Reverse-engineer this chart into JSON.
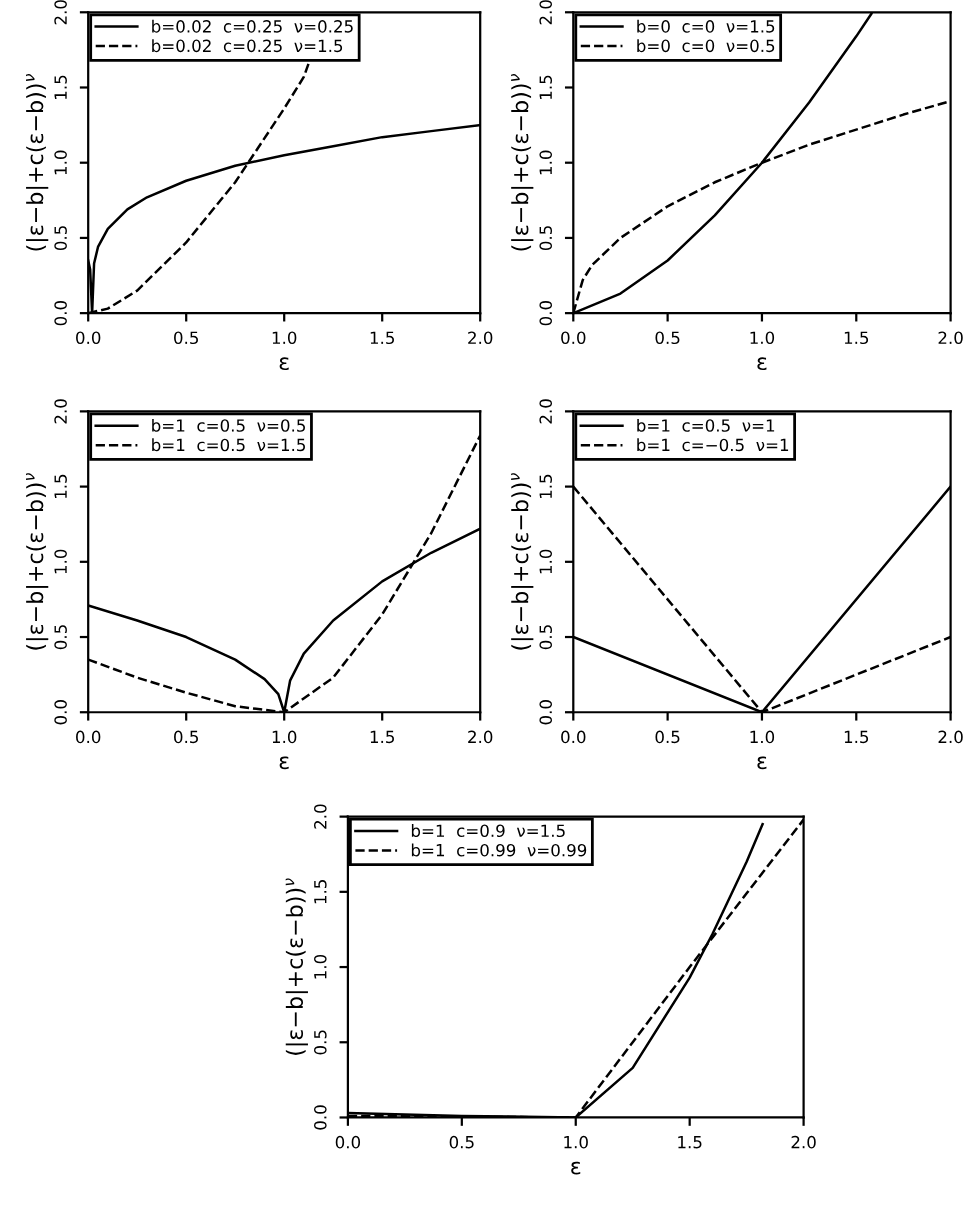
{
  "chart_data": [
    {
      "type": "line",
      "xlabel": "ε",
      "ylabel": "(|ε−b|+c(ε−b))$^{ν}$",
      "xlim": [
        0,
        2
      ],
      "ylim": [
        0,
        2
      ],
      "xticks": [
        {
          "value": 0,
          "label": "0.0"
        },
        {
          "value": 0.5,
          "label": "0.5"
        },
        {
          "value": 1,
          "label": "1.0"
        },
        {
          "value": 1.5,
          "label": "1.5"
        },
        {
          "value": 2,
          "label": "2.0"
        }
      ],
      "yticks": [
        {
          "value": 0,
          "label": "0.0"
        },
        {
          "value": 0.5,
          "label": "0.5"
        },
        {
          "value": 1,
          "label": "1.0"
        },
        {
          "value": 1.5,
          "label": "1.5"
        },
        {
          "value": 2,
          "label": "2.0"
        }
      ],
      "grid": false,
      "legend": "top left",
      "marker": "none",
      "series": [
        {
          "name": "b=0.02  c=0.25  ν=0.25",
          "color": "#000000",
          "line_style": "solid",
          "x": [
            0,
            0.01,
            0.02,
            0.03,
            0.05,
            0.1,
            0.2,
            0.3,
            0.5,
            0.75,
            1.0,
            1.25,
            1.5,
            1.75,
            2.0
          ],
          "values": [
            0.35,
            0.29,
            0,
            0.33,
            0.44,
            0.56,
            0.69,
            0.77,
            0.88,
            0.98,
            1.05,
            1.11,
            1.17,
            1.21,
            1.25
          ]
        },
        {
          "name": "b=0.02  c=0.25  ν=1.5",
          "color": "#000000",
          "line_style": "dashed",
          "x": [
            0,
            0.1,
            0.25,
            0.5,
            0.75,
            1.0,
            1.1,
            1.13
          ],
          "values": [
            0.0,
            0.03,
            0.15,
            0.47,
            0.87,
            1.36,
            1.57,
            1.68
          ]
        }
      ]
    },
    {
      "type": "line",
      "xlabel": "ε",
      "ylabel": "(|ε−b|+c(ε−b))$^{ν}$",
      "xlim": [
        0,
        2
      ],
      "ylim": [
        0,
        2
      ],
      "xticks": [
        {
          "value": 0,
          "label": "0.0"
        },
        {
          "value": 0.5,
          "label": "0.5"
        },
        {
          "value": 1,
          "label": "1.0"
        },
        {
          "value": 1.5,
          "label": "1.5"
        },
        {
          "value": 2,
          "label": "2.0"
        }
      ],
      "yticks": [
        {
          "value": 0,
          "label": "0.0"
        },
        {
          "value": 0.5,
          "label": "0.5"
        },
        {
          "value": 1,
          "label": "1.0"
        },
        {
          "value": 1.5,
          "label": "1.5"
        },
        {
          "value": 2,
          "label": "2.0"
        }
      ],
      "grid": false,
      "legend": "top left",
      "marker": "none",
      "series": [
        {
          "name": "b=0  c=0  ν=1.5",
          "color": "#000000",
          "line_style": "solid",
          "x": [
            0,
            0.25,
            0.5,
            0.75,
            1.0,
            1.25,
            1.5,
            1.58
          ],
          "values": [
            0,
            0.13,
            0.35,
            0.65,
            1.0,
            1.4,
            1.84,
            1.99
          ]
        },
        {
          "name": "b=0  c=0  ν=0.5",
          "color": "#000000",
          "line_style": "dashed",
          "x": [
            0,
            0.05,
            0.1,
            0.25,
            0.5,
            0.75,
            1.0,
            1.25,
            1.5,
            1.75,
            2.0
          ],
          "values": [
            0,
            0.22,
            0.32,
            0.5,
            0.71,
            0.87,
            1.0,
            1.12,
            1.22,
            1.32,
            1.41
          ]
        }
      ]
    },
    {
      "type": "line",
      "xlabel": "ε",
      "ylabel": "(|ε−b|+c(ε−b))$^{ν}$",
      "xlim": [
        0,
        2
      ],
      "ylim": [
        0,
        2
      ],
      "xticks": [
        {
          "value": 0,
          "label": "0.0"
        },
        {
          "value": 0.5,
          "label": "0.5"
        },
        {
          "value": 1,
          "label": "1.0"
        },
        {
          "value": 1.5,
          "label": "1.5"
        },
        {
          "value": 2,
          "label": "2.0"
        }
      ],
      "yticks": [
        {
          "value": 0,
          "label": "0.0"
        },
        {
          "value": 0.5,
          "label": "0.5"
        },
        {
          "value": 1,
          "label": "1.0"
        },
        {
          "value": 1.5,
          "label": "1.5"
        },
        {
          "value": 2,
          "label": "2.0"
        }
      ],
      "grid": false,
      "legend": "top left",
      "marker": "none",
      "series": [
        {
          "name": "b=1  c=0.5  ν=0.5",
          "color": "#000000",
          "line_style": "solid",
          "x": [
            0,
            0.25,
            0.5,
            0.75,
            0.9,
            0.97,
            1.0,
            1.03,
            1.1,
            1.25,
            1.5,
            1.75,
            2.0
          ],
          "values": [
            0.71,
            0.61,
            0.5,
            0.35,
            0.22,
            0.12,
            0,
            0.21,
            0.39,
            0.61,
            0.87,
            1.06,
            1.22
          ]
        },
        {
          "name": "b=1  c=0.5  ν=1.5",
          "color": "#000000",
          "line_style": "dashed",
          "x": [
            0,
            0.25,
            0.5,
            0.75,
            1.0,
            1.25,
            1.5,
            1.75,
            2.0
          ],
          "values": [
            0.35,
            0.23,
            0.13,
            0.04,
            0,
            0.23,
            0.65,
            1.19,
            1.84
          ]
        }
      ]
    },
    {
      "type": "line",
      "xlabel": "ε",
      "ylabel": "(|ε−b|+c(ε−b))$^{ν}$",
      "xlim": [
        0,
        2
      ],
      "ylim": [
        0,
        2
      ],
      "xticks": [
        {
          "value": 0,
          "label": "0.0"
        },
        {
          "value": 0.5,
          "label": "0.5"
        },
        {
          "value": 1,
          "label": "1.0"
        },
        {
          "value": 1.5,
          "label": "1.5"
        },
        {
          "value": 2,
          "label": "2.0"
        }
      ],
      "yticks": [
        {
          "value": 0,
          "label": "0.0"
        },
        {
          "value": 0.5,
          "label": "0.5"
        },
        {
          "value": 1,
          "label": "1.0"
        },
        {
          "value": 1.5,
          "label": "1.5"
        },
        {
          "value": 2,
          "label": "2.0"
        }
      ],
      "grid": false,
      "legend": "top left",
      "marker": "none",
      "series": [
        {
          "name": "b=1  c=0.5  ν=1",
          "color": "#000000",
          "line_style": "solid",
          "x": [
            0,
            1.0,
            2.0
          ],
          "values": [
            0.5,
            0,
            1.5
          ]
        },
        {
          "name": "b=1  c=−0.5  ν=1",
          "color": "#000000",
          "line_style": "dashed",
          "x": [
            0,
            1.0,
            2.0
          ],
          "values": [
            1.5,
            0,
            0.5
          ]
        }
      ]
    },
    {
      "type": "line",
      "xlabel": "ε",
      "ylabel": "(|ε−b|+c(ε−b))$^{ν}$",
      "xlim": [
        0,
        2
      ],
      "ylim": [
        0,
        2
      ],
      "xticks": [
        {
          "value": 0,
          "label": "0.0"
        },
        {
          "value": 0.5,
          "label": "0.5"
        },
        {
          "value": 1,
          "label": "1.0"
        },
        {
          "value": 1.5,
          "label": "1.5"
        },
        {
          "value": 2,
          "label": "2.0"
        }
      ],
      "yticks": [
        {
          "value": 0,
          "label": "0.0"
        },
        {
          "value": 0.5,
          "label": "0.5"
        },
        {
          "value": 1,
          "label": "1.0"
        },
        {
          "value": 1.5,
          "label": "1.5"
        },
        {
          "value": 2,
          "label": "2.0"
        }
      ],
      "grid": false,
      "legend": "top left",
      "marker": "none",
      "series": [
        {
          "name": "b=1  c=0.9  ν=1.5",
          "color": "#000000",
          "line_style": "solid",
          "x": [
            0,
            0.5,
            1.0,
            1.25,
            1.5,
            1.6,
            1.75,
            1.82
          ],
          "values": [
            0.03,
            0.01,
            0,
            0.33,
            0.93,
            1.22,
            1.7,
            1.95
          ]
        },
        {
          "name": "b=1  c=0.99  ν=0.99",
          "color": "#000000",
          "line_style": "dashed",
          "x": [
            0,
            1.0,
            1.25,
            1.5,
            1.75,
            2.0
          ],
          "values": [
            0.01,
            0,
            0.5,
            1.0,
            1.49,
            1.98
          ]
        }
      ]
    }
  ]
}
